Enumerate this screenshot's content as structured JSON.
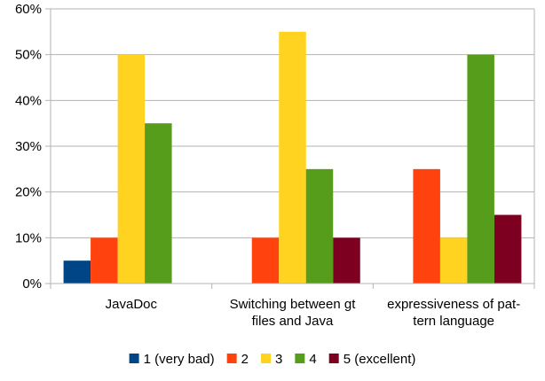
{
  "chart_data": {
    "type": "bar",
    "title": "",
    "xlabel": "",
    "ylabel": "",
    "ylim": [
      0,
      60
    ],
    "ytick_step": 10,
    "y_unit": "%",
    "grid": true,
    "legend_position": "bottom",
    "categories": [
      [
        "JavaDoc"
      ],
      [
        "Switching between gt",
        "files and Java"
      ],
      [
        "expressiveness of pat-",
        "tern language"
      ]
    ],
    "series": [
      {
        "name": "1 (very bad)",
        "color": "#004586",
        "values": [
          5,
          0,
          0
        ]
      },
      {
        "name": "2",
        "color": "#FF420E",
        "values": [
          10,
          10,
          25
        ]
      },
      {
        "name": "3",
        "color": "#FFD320",
        "values": [
          50,
          55,
          10
        ]
      },
      {
        "name": "4",
        "color": "#579D1C",
        "values": [
          35,
          25,
          50
        ]
      },
      {
        "name": "5 (excellent)",
        "color": "#7E0021",
        "values": [
          0,
          10,
          15
        ]
      }
    ]
  }
}
